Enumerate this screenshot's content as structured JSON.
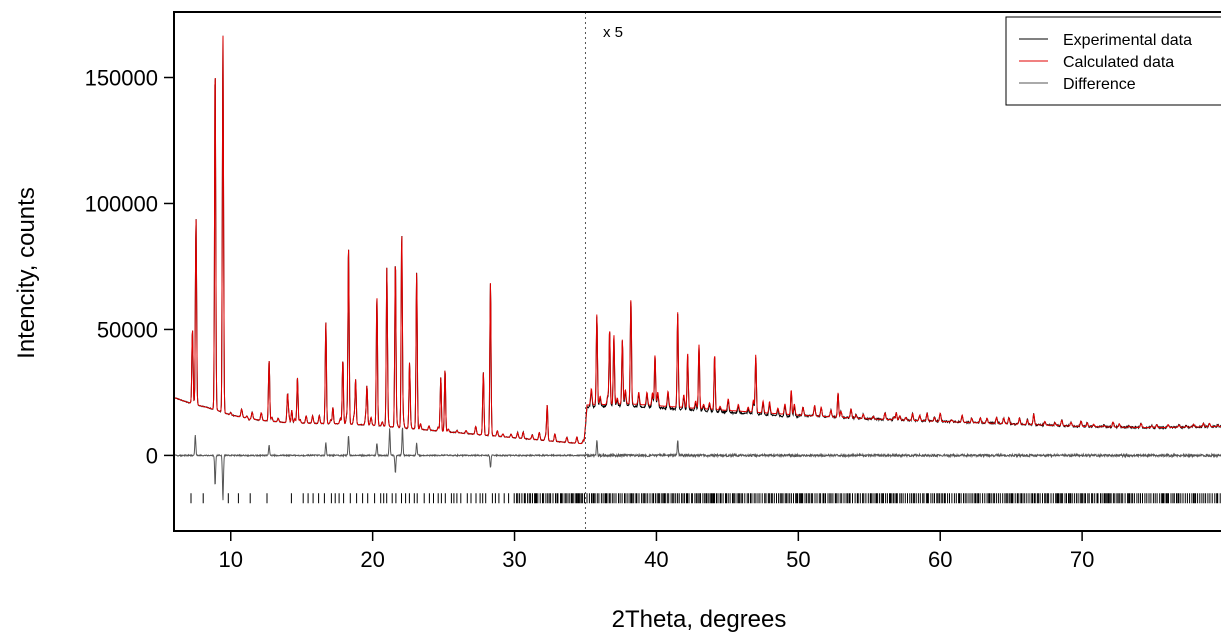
{
  "chart_data": {
    "type": "line",
    "title": "",
    "xlabel": "2Theta, degrees",
    "ylabel": "Intencity, counts",
    "xlim": [
      6,
      80
    ],
    "ylim": [
      -30000,
      176000
    ],
    "xticks": [
      10,
      20,
      30,
      40,
      50,
      60,
      70
    ],
    "yticks": [
      0,
      50000,
      100000,
      150000
    ],
    "grid": false,
    "legend_position": "top-right",
    "annotation": {
      "text": "x 5",
      "divider_x": 35
    },
    "colors": {
      "experimental": "#000000",
      "calculated": "#e00000",
      "difference": "#555555",
      "reflections": "#000000"
    },
    "baseline": {
      "x": [
        6,
        7,
        8,
        9,
        10,
        12,
        14,
        16,
        18,
        20,
        22,
        24,
        26,
        28,
        30,
        32,
        34,
        34.9,
        35.1,
        38,
        42,
        46,
        50,
        55,
        60,
        65,
        70,
        75,
        80
      ],
      "y": [
        23000,
        21000,
        19500,
        18000,
        16000,
        14000,
        13000,
        12700,
        12500,
        12000,
        11000,
        10000,
        9000,
        8000,
        7000,
        6000,
        5000,
        4600,
        20000,
        20500,
        19000,
        17500,
        16000,
        14500,
        13500,
        12500,
        11500,
        11000,
        11500
      ]
    },
    "peaks": {
      "x": [
        7.3,
        7.55,
        8.9,
        9.45,
        11.3,
        12.7,
        14.0,
        14.3,
        14.7,
        16.7,
        17.2,
        17.9,
        18.3,
        18.8,
        19.6,
        20.3,
        21.0,
        21.6,
        22.05,
        22.6,
        23.1,
        24.8,
        25.1,
        27.8,
        28.3,
        32.3,
        35.8,
        36.7,
        37.0,
        37.6,
        38.2,
        39.9,
        41.5,
        42.2,
        43.0,
        44.1,
        47.0,
        49.5,
        52.8,
        56.9,
        66.6
      ],
      "y": [
        50000,
        94000,
        154000,
        167000,
        14000,
        38000,
        24000,
        18000,
        31000,
        53000,
        19000,
        38000,
        83000,
        30000,
        27000,
        63000,
        74000,
        77000,
        88000,
        36000,
        73000,
        31000,
        34000,
        31000,
        68000,
        20000,
        56000,
        50000,
        48000,
        46000,
        61000,
        40000,
        54000,
        41000,
        44000,
        40000,
        40000,
        26000,
        25000,
        17000,
        15000
      ]
    },
    "difference_spikes": {
      "x": [
        7.5,
        8.9,
        9.45,
        12.7,
        16.7,
        18.3,
        20.3,
        21.2,
        21.6,
        22.1,
        23.1,
        28.3,
        35.8,
        41.5
      ],
      "y": [
        8000,
        -12000,
        -18000,
        4000,
        5000,
        8000,
        5000,
        11000,
        -7000,
        11000,
        5000,
        -5000,
        6000,
        6000
      ]
    },
    "reflection_marker_y": -17000,
    "legend": [
      "Experimental data",
      "Calculated data",
      "Difference"
    ]
  }
}
